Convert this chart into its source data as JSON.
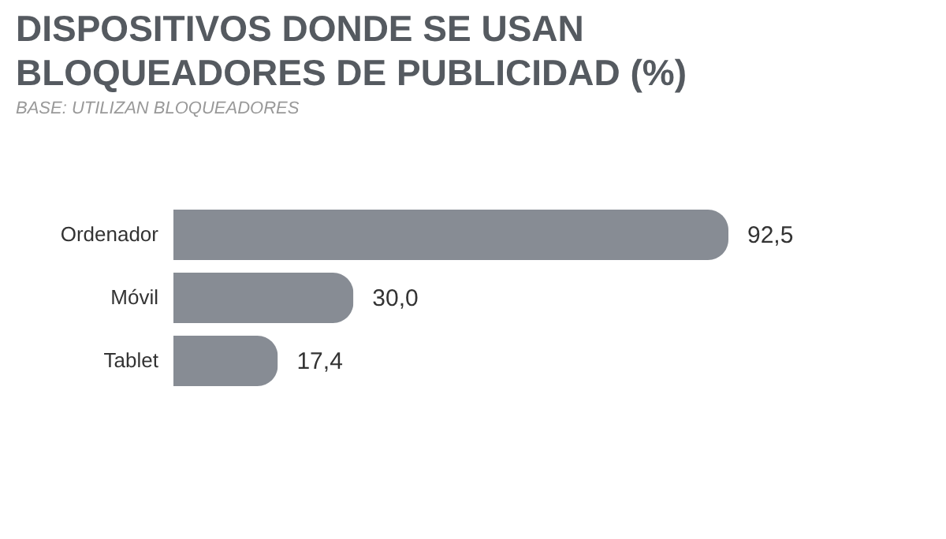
{
  "chart_data": {
    "type": "bar",
    "orientation": "horizontal",
    "title": "DISPOSITIVOS DONDE SE USAN\nBLOQUEADORES DE PUBLICIDAD (%)",
    "subtitle": "BASE: UTILIZAN BLOQUEADORES",
    "categories": [
      "Ordenador",
      "Móvil",
      "Tablet"
    ],
    "values": [
      92.5,
      30.0,
      17.4
    ],
    "value_labels": [
      "92,5",
      "30,0",
      "17,4"
    ],
    "colors": [
      "#878c94",
      "#878c94",
      "#878c94"
    ],
    "grid": false
  }
}
